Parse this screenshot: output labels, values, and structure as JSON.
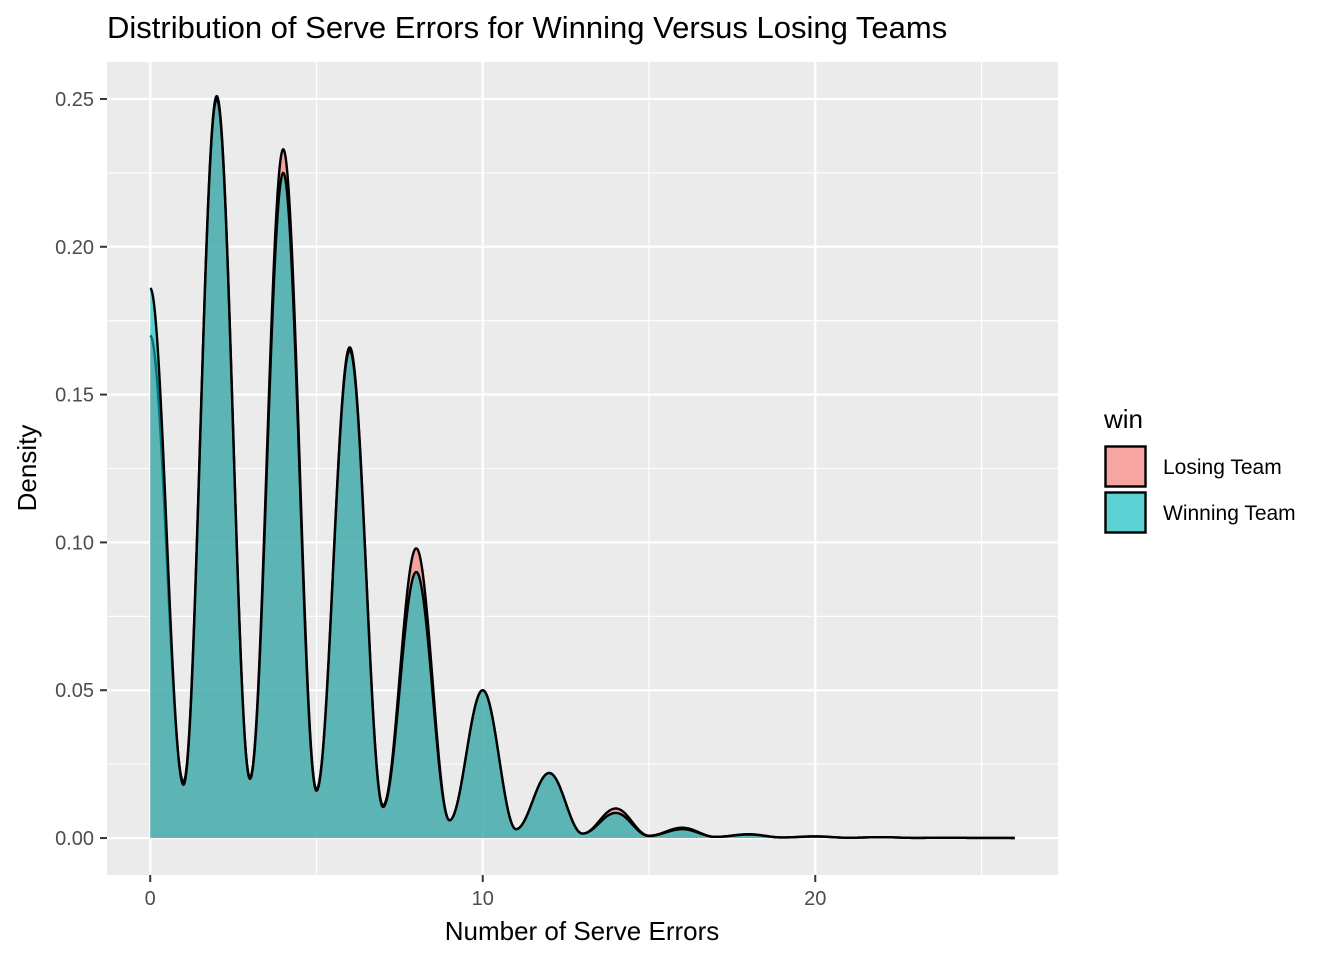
{
  "chart_data": {
    "type": "area",
    "title": "Distribution of Serve Errors for Winning Versus Losing Teams",
    "xlabel": "Number of Serve Errors",
    "ylabel": "Density",
    "xlim": [
      -1.3,
      27.3
    ],
    "ylim": [
      -0.0125,
      0.2625
    ],
    "x_ticks": [
      0,
      10,
      20
    ],
    "x_tick_labels": [
      "0",
      "10",
      "20"
    ],
    "y_ticks": [
      0,
      0.05,
      0.1,
      0.15,
      0.2,
      0.25
    ],
    "y_tick_labels": [
      "0.00",
      "0.05",
      "0.10",
      "0.15",
      "0.20",
      "0.25"
    ],
    "grid": true,
    "legend": {
      "title": "win",
      "position": "right",
      "entries": [
        "Losing Team",
        "Winning Team"
      ]
    },
    "series": [
      {
        "name": "Losing Team",
        "color": "#F8766D",
        "x_range": [
          0,
          26
        ],
        "start_density": 0.17,
        "peaks": [
          [
            2,
            0.251
          ],
          [
            4,
            0.233
          ],
          [
            6,
            0.166
          ],
          [
            8,
            0.098
          ],
          [
            10,
            0.05
          ],
          [
            12,
            0.022
          ],
          [
            14,
            0.01
          ],
          [
            16,
            0.0035
          ],
          [
            18,
            0.0013
          ],
          [
            20,
            0.0006
          ],
          [
            22,
            0.0003
          ],
          [
            24,
            0.0001
          ]
        ],
        "troughs": [
          [
            1,
            0.019
          ],
          [
            3,
            0.0205
          ],
          [
            5,
            0.0165
          ],
          [
            7,
            0.011
          ],
          [
            9,
            0.006
          ],
          [
            11,
            0.003
          ],
          [
            13,
            0.0015
          ],
          [
            15,
            0.0008
          ],
          [
            17,
            0.0004
          ],
          [
            19,
            0.0002
          ],
          [
            21,
            0.0001
          ],
          [
            23,
            5e-05
          ],
          [
            25,
            3e-05
          ]
        ],
        "end_density": 2e-05
      },
      {
        "name": "Winning Team",
        "color": "#00BFC4",
        "x_range": [
          0,
          26
        ],
        "start_density": 0.186,
        "peaks": [
          [
            2,
            0.25
          ],
          [
            4,
            0.225
          ],
          [
            6,
            0.165
          ],
          [
            8,
            0.09
          ],
          [
            10,
            0.05
          ],
          [
            12,
            0.022
          ],
          [
            14,
            0.0085
          ],
          [
            16,
            0.003
          ],
          [
            18,
            0.0012
          ],
          [
            20,
            0.0005
          ],
          [
            22,
            0.0003
          ],
          [
            24,
            0.0001
          ]
        ],
        "troughs": [
          [
            1,
            0.018
          ],
          [
            3,
            0.02
          ],
          [
            5,
            0.016
          ],
          [
            7,
            0.0105
          ],
          [
            9,
            0.006
          ],
          [
            11,
            0.003
          ],
          [
            13,
            0.0015
          ],
          [
            15,
            0.0007
          ],
          [
            17,
            0.0004
          ],
          [
            19,
            0.0002
          ],
          [
            21,
            0.0001
          ],
          [
            23,
            5e-05
          ],
          [
            25,
            3e-05
          ]
        ],
        "end_density": 2e-05
      }
    ]
  }
}
